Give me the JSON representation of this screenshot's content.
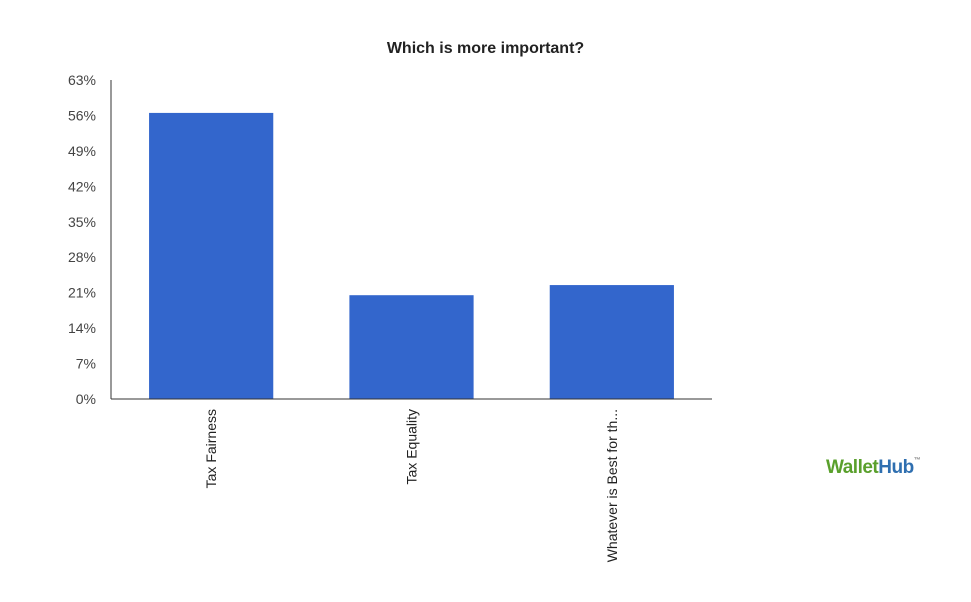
{
  "chart_data": {
    "type": "bar",
    "title": "Which is more important?",
    "categories": [
      "Tax Fairness",
      "Tax Equality",
      "Whatever is Best for th..."
    ],
    "values": [
      56.5,
      20.5,
      22.5
    ],
    "yticks": [
      "0%",
      "7%",
      "14%",
      "21%",
      "28%",
      "35%",
      "42%",
      "49%",
      "56%",
      "63%"
    ],
    "ylim": [
      0,
      63
    ],
    "bar_color": "#3366cc",
    "axis_color": "#333333",
    "grid": false,
    "legend": "none"
  },
  "logo": {
    "part1": "Wallet",
    "part2": "Hub",
    "mark": "™"
  }
}
